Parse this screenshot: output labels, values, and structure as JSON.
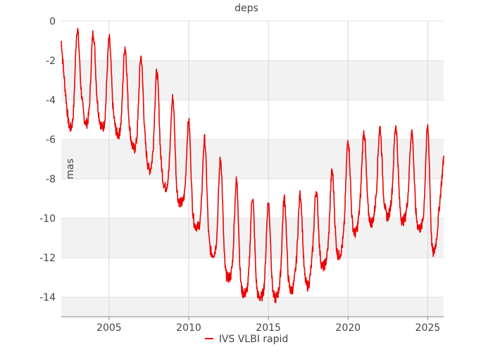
{
  "chart_data": {
    "type": "line",
    "title": "deps",
    "xlabel": "",
    "ylabel": "mas",
    "xlim": [
      2002.0,
      2026.0
    ],
    "ylim": [
      -15,
      0
    ],
    "xticks": [
      2005,
      2010,
      2015,
      2020,
      2025
    ],
    "yticks": [
      0,
      -2,
      -4,
      -6,
      -8,
      -10,
      -12,
      -14
    ],
    "grid": "horizontal bands",
    "legend": "bottom-center",
    "series": [
      {
        "name": "IVS VLBI rapid",
        "color": "#ee0000",
        "points": [
          [
            2002.0,
            -1.0
          ],
          [
            2002.25,
            -3.5
          ],
          [
            2002.5,
            -5.3
          ],
          [
            2002.75,
            -4.7
          ],
          [
            2003.0,
            -0.4
          ],
          [
            2003.25,
            -3.5
          ],
          [
            2003.5,
            -5.1
          ],
          [
            2003.75,
            -4.5
          ],
          [
            2004.0,
            -0.6
          ],
          [
            2004.25,
            -3.9
          ],
          [
            2004.5,
            -5.3
          ],
          [
            2004.75,
            -4.8
          ],
          [
            2005.0,
            -0.9
          ],
          [
            2005.25,
            -4.4
          ],
          [
            2005.5,
            -5.7
          ],
          [
            2005.75,
            -5.1
          ],
          [
            2006.0,
            -1.3
          ],
          [
            2006.25,
            -5.0
          ],
          [
            2006.5,
            -6.4
          ],
          [
            2006.75,
            -5.8
          ],
          [
            2007.0,
            -1.8
          ],
          [
            2007.25,
            -5.8
          ],
          [
            2007.5,
            -7.5
          ],
          [
            2007.75,
            -6.6
          ],
          [
            2008.0,
            -2.6
          ],
          [
            2008.25,
            -6.9
          ],
          [
            2008.5,
            -8.4
          ],
          [
            2008.75,
            -7.6
          ],
          [
            2009.0,
            -3.9
          ],
          [
            2009.25,
            -8.4
          ],
          [
            2009.5,
            -9.2
          ],
          [
            2009.75,
            -8.6
          ],
          [
            2010.0,
            -5.1
          ],
          [
            2010.25,
            -9.6
          ],
          [
            2010.5,
            -10.4
          ],
          [
            2010.75,
            -9.8
          ],
          [
            2011.0,
            -6.0
          ],
          [
            2011.25,
            -10.8
          ],
          [
            2011.5,
            -11.8
          ],
          [
            2011.75,
            -11.0
          ],
          [
            2012.0,
            -7.0
          ],
          [
            2012.25,
            -12.1
          ],
          [
            2012.5,
            -13.0
          ],
          [
            2012.75,
            -12.2
          ],
          [
            2013.0,
            -8.1
          ],
          [
            2013.25,
            -13.0
          ],
          [
            2013.5,
            -13.8
          ],
          [
            2013.75,
            -13.0
          ],
          [
            2014.0,
            -8.9
          ],
          [
            2014.25,
            -13.3
          ],
          [
            2014.5,
            -14.0
          ],
          [
            2014.75,
            -13.2
          ],
          [
            2015.0,
            -9.2
          ],
          [
            2015.25,
            -13.4
          ],
          [
            2015.5,
            -14.0
          ],
          [
            2015.75,
            -12.9
          ],
          [
            2016.0,
            -9.0
          ],
          [
            2016.25,
            -13.0
          ],
          [
            2016.5,
            -13.6
          ],
          [
            2016.75,
            -12.2
          ],
          [
            2017.0,
            -8.8
          ],
          [
            2017.25,
            -12.6
          ],
          [
            2017.5,
            -13.4
          ],
          [
            2017.75,
            -11.9
          ],
          [
            2018.0,
            -8.6
          ],
          [
            2018.25,
            -11.9
          ],
          [
            2018.5,
            -12.4
          ],
          [
            2018.75,
            -11.3
          ],
          [
            2019.0,
            -7.6
          ],
          [
            2019.25,
            -11.3
          ],
          [
            2019.5,
            -11.8
          ],
          [
            2019.75,
            -10.4
          ],
          [
            2020.0,
            -6.0
          ],
          [
            2020.25,
            -10.0
          ],
          [
            2020.5,
            -10.7
          ],
          [
            2020.75,
            -9.2
          ],
          [
            2021.0,
            -5.6
          ],
          [
            2021.25,
            -9.4
          ],
          [
            2021.5,
            -10.2
          ],
          [
            2021.75,
            -8.9
          ],
          [
            2022.0,
            -5.4
          ],
          [
            2022.25,
            -9.0
          ],
          [
            2022.5,
            -9.9
          ],
          [
            2022.75,
            -8.7
          ],
          [
            2023.0,
            -5.3
          ],
          [
            2023.25,
            -9.4
          ],
          [
            2023.5,
            -10.1
          ],
          [
            2023.75,
            -8.9
          ],
          [
            2024.0,
            -5.6
          ],
          [
            2024.25,
            -9.6
          ],
          [
            2024.5,
            -10.5
          ],
          [
            2024.75,
            -9.6
          ],
          [
            2025.0,
            -5.4
          ],
          [
            2025.25,
            -11.2
          ],
          [
            2025.5,
            -11.3
          ],
          [
            2025.75,
            -9.2
          ],
          [
            2026.0,
            -6.9
          ]
        ]
      }
    ]
  }
}
